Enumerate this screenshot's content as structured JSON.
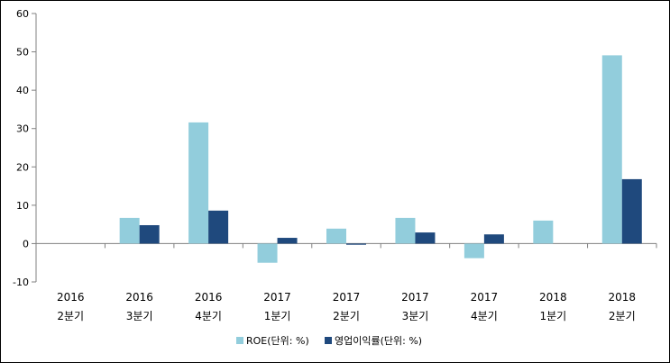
{
  "chart_data": {
    "type": "bar",
    "categories": [
      [
        "2016",
        "2분기"
      ],
      [
        "2016",
        "3분기"
      ],
      [
        "2016",
        "4분기"
      ],
      [
        "2017",
        "1분기"
      ],
      [
        "2017",
        "2분기"
      ],
      [
        "2017",
        "3분기"
      ],
      [
        "2017",
        "4분기"
      ],
      [
        "2018",
        "1분기"
      ],
      [
        "2018",
        "2분기"
      ]
    ],
    "series": [
      {
        "name": "ROE(단위: %)",
        "color": "#92cddc",
        "values": [
          0,
          6.7,
          31.6,
          -5.0,
          3.9,
          6.7,
          -3.8,
          6.0,
          49.1
        ]
      },
      {
        "name": "영업이익률(단위: %)",
        "color": "#1f497d",
        "values": [
          0,
          4.8,
          8.6,
          1.5,
          -0.3,
          2.9,
          2.4,
          0,
          16.8
        ]
      }
    ],
    "ylim": [
      -10,
      60
    ],
    "yticks": [
      -10,
      0,
      10,
      20,
      30,
      40,
      50,
      60
    ],
    "grid": false,
    "legend_position": "bottom"
  }
}
